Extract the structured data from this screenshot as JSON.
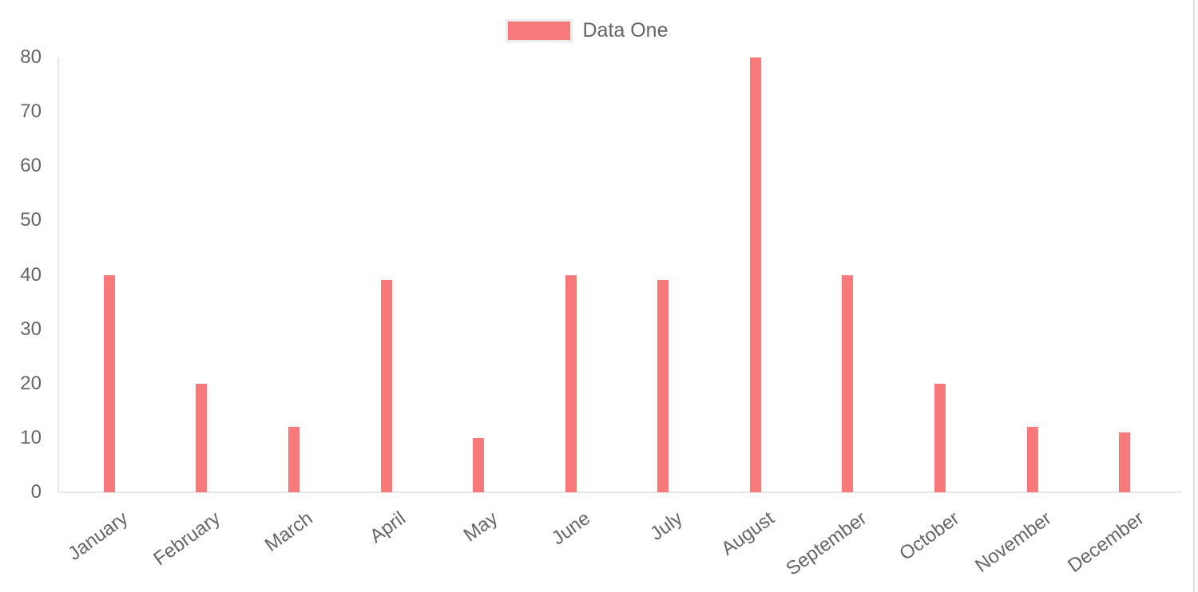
{
  "chart_data": {
    "type": "bar",
    "title": "",
    "categories": [
      "January",
      "February",
      "March",
      "April",
      "May",
      "June",
      "July",
      "August",
      "September",
      "October",
      "November",
      "December"
    ],
    "series": [
      {
        "name": "Data One",
        "color": "#f87979",
        "values": [
          40,
          20,
          12,
          39,
          10,
          40,
          39,
          80,
          40,
          20,
          12,
          11
        ]
      }
    ],
    "xlabel": "",
    "ylabel": "",
    "ylim": [
      0,
      80
    ],
    "ytick_step": 10,
    "ytick_labels": [
      "0",
      "10",
      "20",
      "30",
      "40",
      "50",
      "60",
      "70",
      "80"
    ],
    "legend_position": "top-center",
    "grid": "axis-borders-only",
    "x_label_rotation_deg": -36,
    "colors": {
      "bar": "#f87979",
      "text": "#666666",
      "axis": "#e7e7e7"
    }
  }
}
